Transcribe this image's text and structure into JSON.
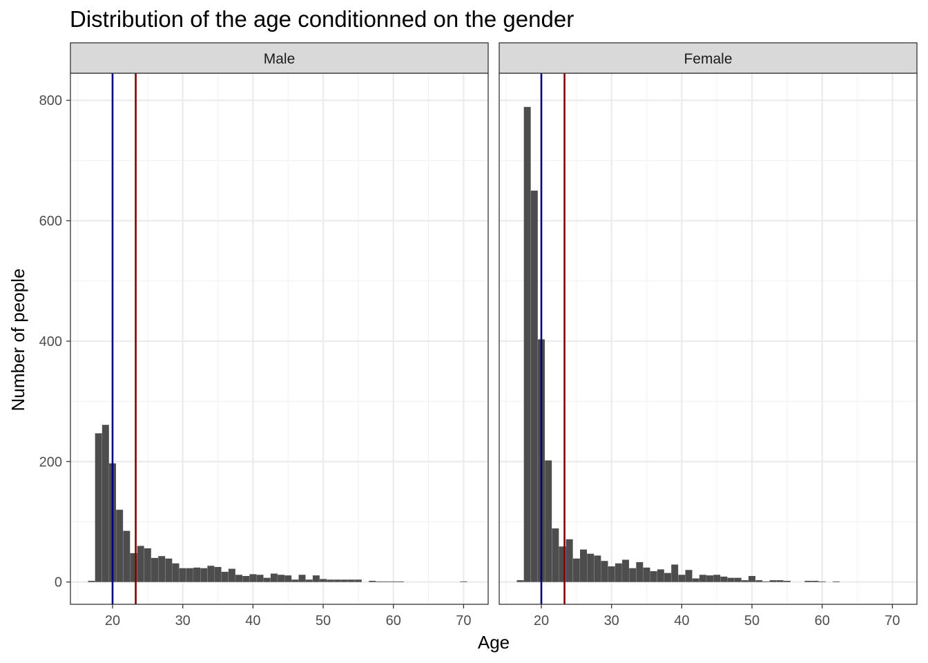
{
  "chart_data": {
    "type": "bar",
    "title": "Distribution of the age conditionned on the gender",
    "xlabel": "Age",
    "ylabel": "Number of people",
    "xlim": [
      14,
      73.5
    ],
    "ylim": [
      -37,
      845
    ],
    "x_ticks": [
      20,
      30,
      40,
      50,
      60,
      70
    ],
    "y_ticks": [
      0,
      200,
      400,
      600,
      800
    ],
    "bin_width": 1,
    "grid": true,
    "bar_color": "#4d4d4d",
    "vlines": [
      {
        "x": 20,
        "color": "#000080"
      },
      {
        "x": 23.3,
        "color": "#800000"
      }
    ],
    "panels": [
      {
        "strip_label": "Male",
        "x": [
          17,
          18,
          19,
          20,
          21,
          22,
          23,
          24,
          25,
          26,
          27,
          28,
          29,
          30,
          31,
          32,
          33,
          34,
          35,
          36,
          37,
          38,
          39,
          40,
          41,
          42,
          43,
          44,
          45,
          46,
          47,
          48,
          49,
          50,
          51,
          52,
          53,
          54,
          55,
          57,
          58,
          59,
          60,
          61,
          70
        ],
        "values": [
          2,
          247,
          261,
          197,
          120,
          85,
          48,
          60,
          56,
          40,
          43,
          39,
          31,
          23,
          23,
          24,
          23,
          27,
          25,
          17,
          22,
          12,
          10,
          13,
          12,
          7,
          14,
          12,
          11,
          4,
          12,
          4,
          11,
          5,
          4,
          4,
          4,
          4,
          4,
          2,
          1,
          1,
          1,
          1,
          1
        ]
      },
      {
        "strip_label": "Female",
        "x": [
          17,
          18,
          19,
          20,
          21,
          22,
          23,
          24,
          25,
          26,
          27,
          28,
          29,
          30,
          31,
          32,
          33,
          34,
          35,
          36,
          37,
          38,
          39,
          40,
          41,
          42,
          43,
          44,
          45,
          46,
          47,
          48,
          49,
          50,
          51,
          52,
          53,
          54,
          55,
          58,
          59,
          60,
          62
        ],
        "values": [
          3,
          789,
          650,
          403,
          202,
          89,
          59,
          71,
          39,
          54,
          47,
          44,
          35,
          26,
          31,
          37,
          23,
          33,
          24,
          18,
          21,
          15,
          29,
          12,
          20,
          6,
          12,
          11,
          12,
          9,
          7,
          7,
          3,
          10,
          3,
          1,
          3,
          3,
          2,
          2,
          2,
          1,
          1
        ]
      }
    ]
  }
}
